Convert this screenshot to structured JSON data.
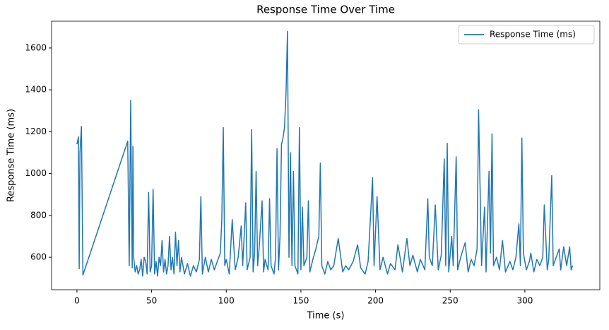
{
  "chart_data": {
    "type": "line",
    "title": "Response Time Over Time",
    "x_label": "Time (s)",
    "y_label": "Response Time (ms)",
    "x": [
      0,
      1,
      1.5,
      2,
      3,
      4,
      34,
      35,
      36,
      37,
      37.5,
      38,
      39,
      40,
      41,
      42,
      43,
      44,
      45,
      46,
      47,
      48,
      49,
      50,
      51,
      52,
      53,
      54,
      55,
      56,
      57,
      58,
      59,
      60,
      61,
      62,
      63,
      64,
      65,
      66,
      67,
      68,
      69,
      70,
      72,
      74,
      76,
      78,
      80,
      82,
      83,
      84,
      86,
      88,
      90,
      92,
      94,
      96,
      97,
      98,
      99,
      100,
      102,
      104,
      106,
      108,
      110,
      111,
      112,
      113,
      114,
      116,
      117,
      118,
      119,
      120,
      121,
      122,
      124,
      125,
      126,
      128,
      129,
      130,
      132,
      133,
      134,
      135,
      136,
      137,
      138,
      139,
      140,
      141,
      142,
      143,
      144,
      145,
      146,
      148,
      149,
      150,
      151,
      152,
      154,
      155,
      156,
      158,
      160,
      162,
      163,
      164,
      166,
      168,
      170,
      172,
      175,
      178,
      180,
      182,
      185,
      188,
      190,
      193,
      195,
      198,
      199,
      201,
      203,
      205,
      208,
      210,
      213,
      215,
      218,
      221,
      223,
      225,
      228,
      230,
      233,
      235,
      236,
      238,
      240,
      242,
      244,
      246,
      247,
      248,
      249,
      251,
      252,
      254,
      255,
      257,
      260,
      262,
      264,
      266,
      268,
      269,
      271,
      273,
      274,
      276,
      277,
      278,
      279,
      281,
      283,
      285,
      287,
      290,
      292,
      294,
      296,
      297,
      298,
      299,
      301,
      303,
      304,
      306,
      308,
      310,
      312,
      313,
      315,
      316,
      318,
      319,
      321,
      323,
      324,
      326,
      328,
      330,
      331,
      332
    ],
    "series": [
      {
        "name": "Response Time (ms)",
        "color": "#1f77b4",
        "values": [
          1140,
          1175,
          545,
          1100,
          1225,
          515,
          1155,
          560,
          1350,
          550,
          1130,
          600,
          530,
          560,
          520,
          540,
          590,
          510,
          600,
          580,
          520,
          910,
          530,
          560,
          925,
          520,
          580,
          510,
          600,
          560,
          680,
          530,
          590,
          520,
          560,
          700,
          540,
          600,
          520,
          720,
          560,
          680,
          530,
          600,
          520,
          570,
          510,
          560,
          530,
          590,
          890,
          520,
          600,
          530,
          590,
          540,
          580,
          620,
          775,
          1220,
          560,
          590,
          520,
          780,
          540,
          600,
          750,
          560,
          700,
          860,
          540,
          600,
          1210,
          530,
          620,
          1010,
          560,
          640,
          870,
          530,
          590,
          540,
          880,
          560,
          520,
          600,
          1120,
          540,
          700,
          1140,
          1170,
          1220,
          1380,
          1680,
          600,
          1100,
          560,
          1010,
          560,
          520,
          1220,
          540,
          840,
          560,
          600,
          870,
          530,
          590,
          640,
          700,
          1050,
          560,
          520,
          580,
          540,
          560,
          690,
          530,
          560,
          540,
          580,
          660,
          550,
          520,
          580,
          980,
          560,
          890,
          540,
          600,
          520,
          570,
          540,
          660,
          530,
          690,
          560,
          610,
          530,
          590,
          540,
          880,
          600,
          560,
          850,
          540,
          610,
          1070,
          560,
          1145,
          530,
          700,
          560,
          1080,
          540,
          600,
          670,
          530,
          590,
          560,
          640,
          1305,
          560,
          840,
          530,
          1010,
          620,
          1190,
          560,
          600,
          540,
          680,
          530,
          580,
          540,
          600,
          760,
          560,
          1170,
          620,
          540,
          580,
          620,
          530,
          590,
          560,
          600,
          850,
          540,
          590,
          990,
          560,
          600,
          640,
          540,
          650,
          560,
          650,
          540,
          560
        ]
      }
    ],
    "xlim": [
      -17,
      350.2
    ],
    "ylim": [
      445,
      1728
    ],
    "xticks": [
      0,
      50,
      100,
      150,
      200,
      250,
      300
    ],
    "yticks": [
      600,
      800,
      1000,
      1200,
      1400,
      1600
    ],
    "grid": false,
    "legend": "upper right"
  }
}
